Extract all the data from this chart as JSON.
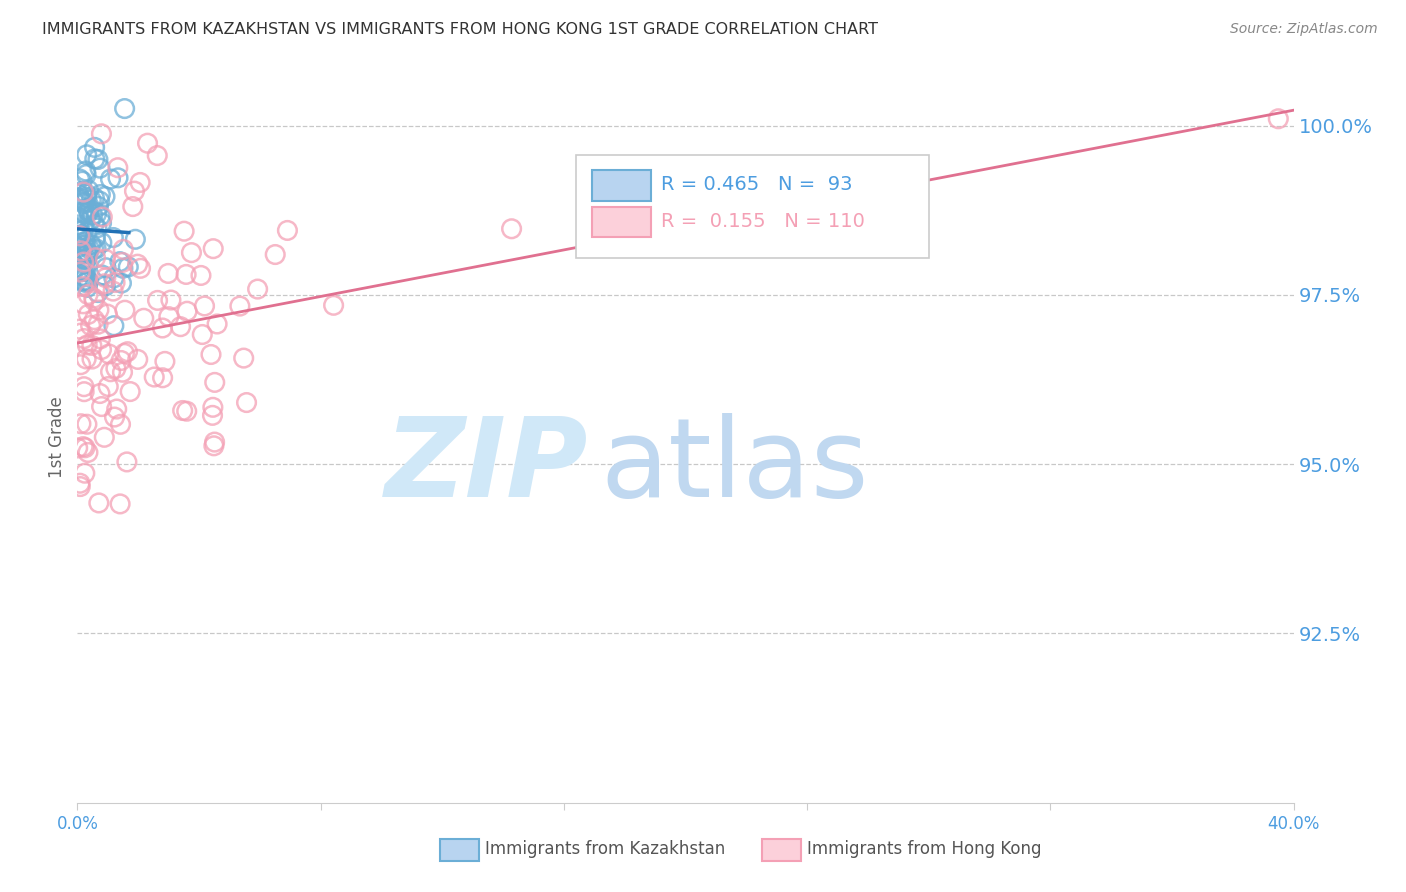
{
  "title": "IMMIGRANTS FROM KAZAKHSTAN VS IMMIGRANTS FROM HONG KONG 1ST GRADE CORRELATION CHART",
  "source": "Source: ZipAtlas.com",
  "ylabel": "1st Grade",
  "y_ticks": [
    92.5,
    95.0,
    97.5,
    100.0
  ],
  "y_tick_labels": [
    "92.5%",
    "95.0%",
    "97.5%",
    "100.0%"
  ],
  "x_min": 0.0,
  "x_max": 40.0,
  "y_min": 90.0,
  "y_max": 100.8,
  "kazakhstan_N": 93,
  "hongkong_N": 110,
  "kazakhstan_color": "#6baed6",
  "hongkong_color": "#f4a0b5",
  "trend_kazakhstan_color": "#2171b5",
  "trend_hongkong_color": "#e07090",
  "background_color": "#ffffff",
  "grid_color": "#bbbbbb",
  "tick_label_color": "#4d9de0",
  "title_color": "#333333",
  "ylabel_color": "#666666",
  "source_color": "#888888",
  "watermark_zip_color": "#d0e8f8",
  "watermark_atlas_color": "#c0d8f0",
  "legend_border_color": "#cccccc",
  "bottom_legend_text_color": "#555555"
}
